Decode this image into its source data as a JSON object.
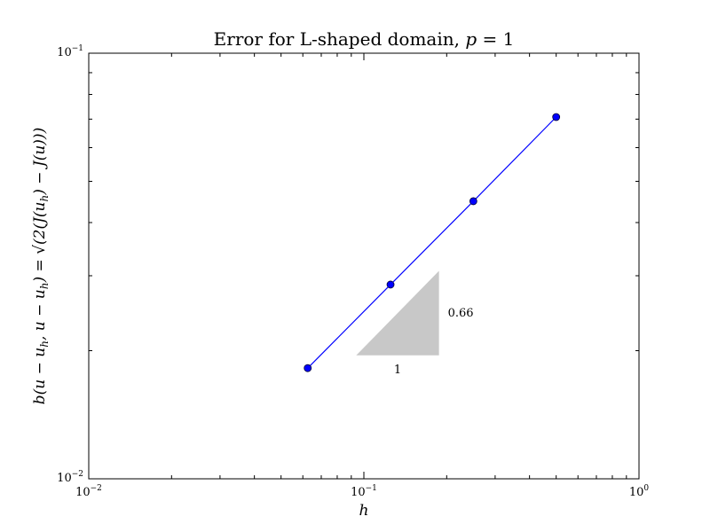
{
  "chart_data": {
    "type": "line",
    "title": "Error for L-shaped domain, p = 1",
    "xlabel": "h",
    "ylabel": "b(u − u_h, u − u_h) = √(2(J(u_h) − J(u)))",
    "xscale": "log",
    "yscale": "log",
    "xlim": [
      0.01,
      1
    ],
    "ylim": [
      0.01,
      0.1
    ],
    "grid": false,
    "x_ticks": [
      {
        "value": 0.01,
        "base": "10",
        "exp": "−2"
      },
      {
        "value": 0.1,
        "base": "10",
        "exp": "−1"
      },
      {
        "value": 1,
        "base": "10",
        "exp": "0"
      }
    ],
    "y_ticks": [
      {
        "value": 0.01,
        "base": "10",
        "exp": "−2"
      },
      {
        "value": 0.1,
        "base": "10",
        "exp": "−1"
      }
    ],
    "series": [
      {
        "color": "#0000ff",
        "marker": "circle",
        "points": [
          {
            "x": 0.0625,
            "y": 0.0182
          },
          {
            "x": 0.125,
            "y": 0.0286
          },
          {
            "x": 0.25,
            "y": 0.0449
          },
          {
            "x": 0.5,
            "y": 0.0708
          }
        ]
      }
    ],
    "slope_triangle": {
      "x_start": 0.0938,
      "x_end": 0.1875,
      "y_base": 0.0195,
      "slope": 0.66,
      "fill": "#c8c8c8",
      "run_label": "1",
      "rise_label": "0.66"
    }
  }
}
